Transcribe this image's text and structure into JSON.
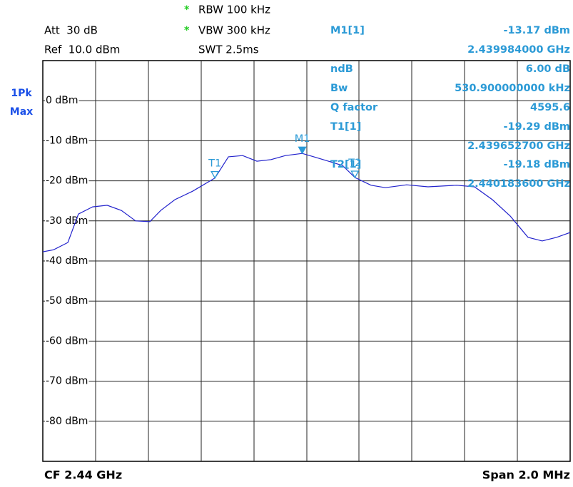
{
  "chart_data": {
    "type": "line",
    "header": {
      "rbw_flag": "*",
      "rbw": "RBW 100 kHz",
      "vbw_flag": "*",
      "vbw": "VBW 300 kHz",
      "swt": "SWT 2.5ms",
      "att": "Att  30 dB",
      "ref": "Ref  10.0 dBm",
      "detector": "1Pk",
      "mode": "Max"
    },
    "footer": {
      "center": "CF 2.44 GHz",
      "span": "Span 2.0 MHz"
    },
    "ylim": [
      -90,
      10
    ],
    "yticks": [
      {
        "value": 0,
        "label": "0 dBm"
      },
      {
        "value": -10,
        "label": "-10 dBm"
      },
      {
        "value": -20,
        "label": "-20 dBm"
      },
      {
        "value": -30,
        "label": "-30 dBm"
      },
      {
        "value": -40,
        "label": "-40 dBm"
      },
      {
        "value": -50,
        "label": "-50 dBm"
      },
      {
        "value": -60,
        "label": "-60 dBm"
      },
      {
        "value": -70,
        "label": "-70 dBm"
      },
      {
        "value": -80,
        "label": "-80 dBm"
      }
    ],
    "xlim": [
      2.439,
      2.441
    ],
    "grid": true,
    "color": "#2222cc",
    "x": [
      2.439,
      2.439041,
      2.439095,
      2.439135,
      2.439189,
      2.439244,
      2.439298,
      2.439352,
      2.439406,
      2.439447,
      2.439501,
      2.439568,
      2.439653,
      2.439704,
      2.439758,
      2.439812,
      2.439866,
      2.43992,
      2.439984,
      2.440028,
      2.440083,
      2.440137,
      2.440184,
      2.440245,
      2.440299,
      2.44038,
      2.440461,
      2.44057,
      2.440637,
      2.440705,
      2.440773,
      2.44084,
      2.440894,
      2.440949,
      2.441
    ],
    "values": [
      -37.7,
      -37.2,
      -35.4,
      -28.3,
      -26.5,
      -26.1,
      -27.4,
      -30.0,
      -30.2,
      -27.4,
      -24.7,
      -22.6,
      -19.29,
      -14.0,
      -13.7,
      -15.1,
      -14.7,
      -13.7,
      -13.17,
      -14.0,
      -15.1,
      -16.2,
      -19.18,
      -21.1,
      -21.7,
      -21.0,
      -21.5,
      -21.1,
      -21.5,
      -24.7,
      -28.8,
      -34.1,
      -35.0,
      -34.1,
      -32.9
    ],
    "markers": [
      {
        "name": "M1",
        "table_name": "M1[1]",
        "filled": true,
        "level": -13.17,
        "level_label": "-13.17 dBm",
        "freq": 2.439984,
        "freq_label": "2.439984000 GHz"
      },
      {
        "name": "T1",
        "table_name": "T1[1]",
        "filled": false,
        "level": -19.29,
        "level_label": "-19.29 dBm",
        "freq": 2.4396527,
        "freq_label": "2.439652700 GHz"
      },
      {
        "name": "T2",
        "table_name": "T2[1]",
        "filled": false,
        "level": -19.18,
        "level_label": "-19.18 dBm",
        "freq": 2.4401836,
        "freq_label": "2.440183600 GHz"
      }
    ],
    "results": [
      {
        "name": "ndB",
        "value": "6.00 dB"
      },
      {
        "name": "Bw",
        "value": "530.900000000 kHz"
      },
      {
        "name": "Q factor",
        "value": "4595.6"
      }
    ]
  }
}
